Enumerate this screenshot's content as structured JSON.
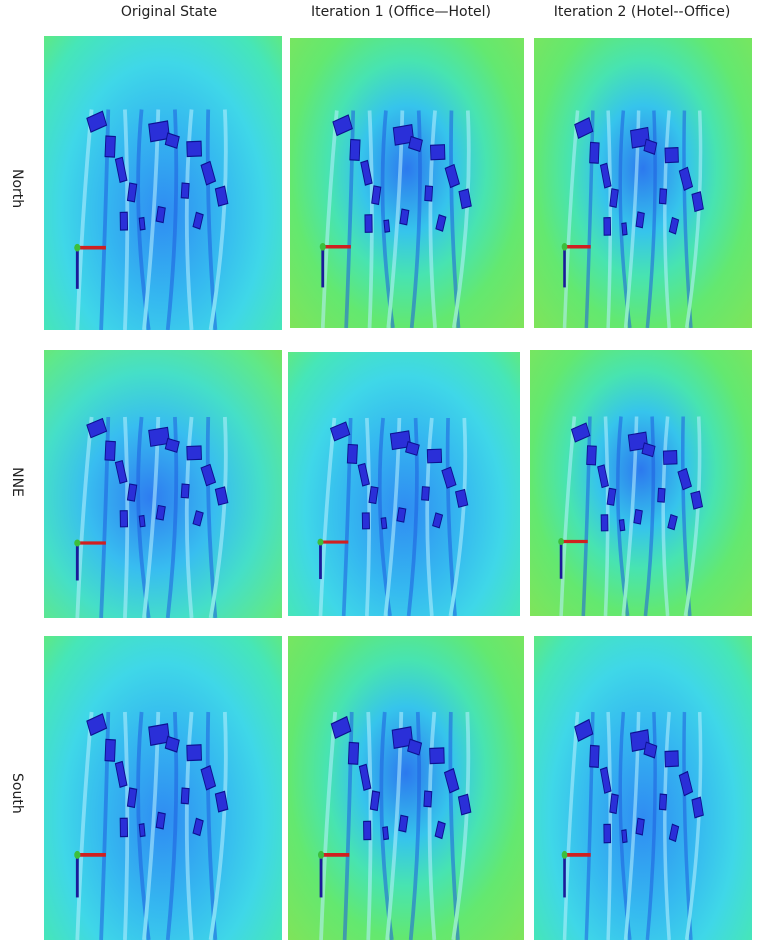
{
  "columns": [
    "Original State",
    "Iteration 1 (Office—Hotel)",
    "Iteration 2 (Hotel--Office)"
  ],
  "rows": [
    "North",
    "NNE",
    "South"
  ]
}
